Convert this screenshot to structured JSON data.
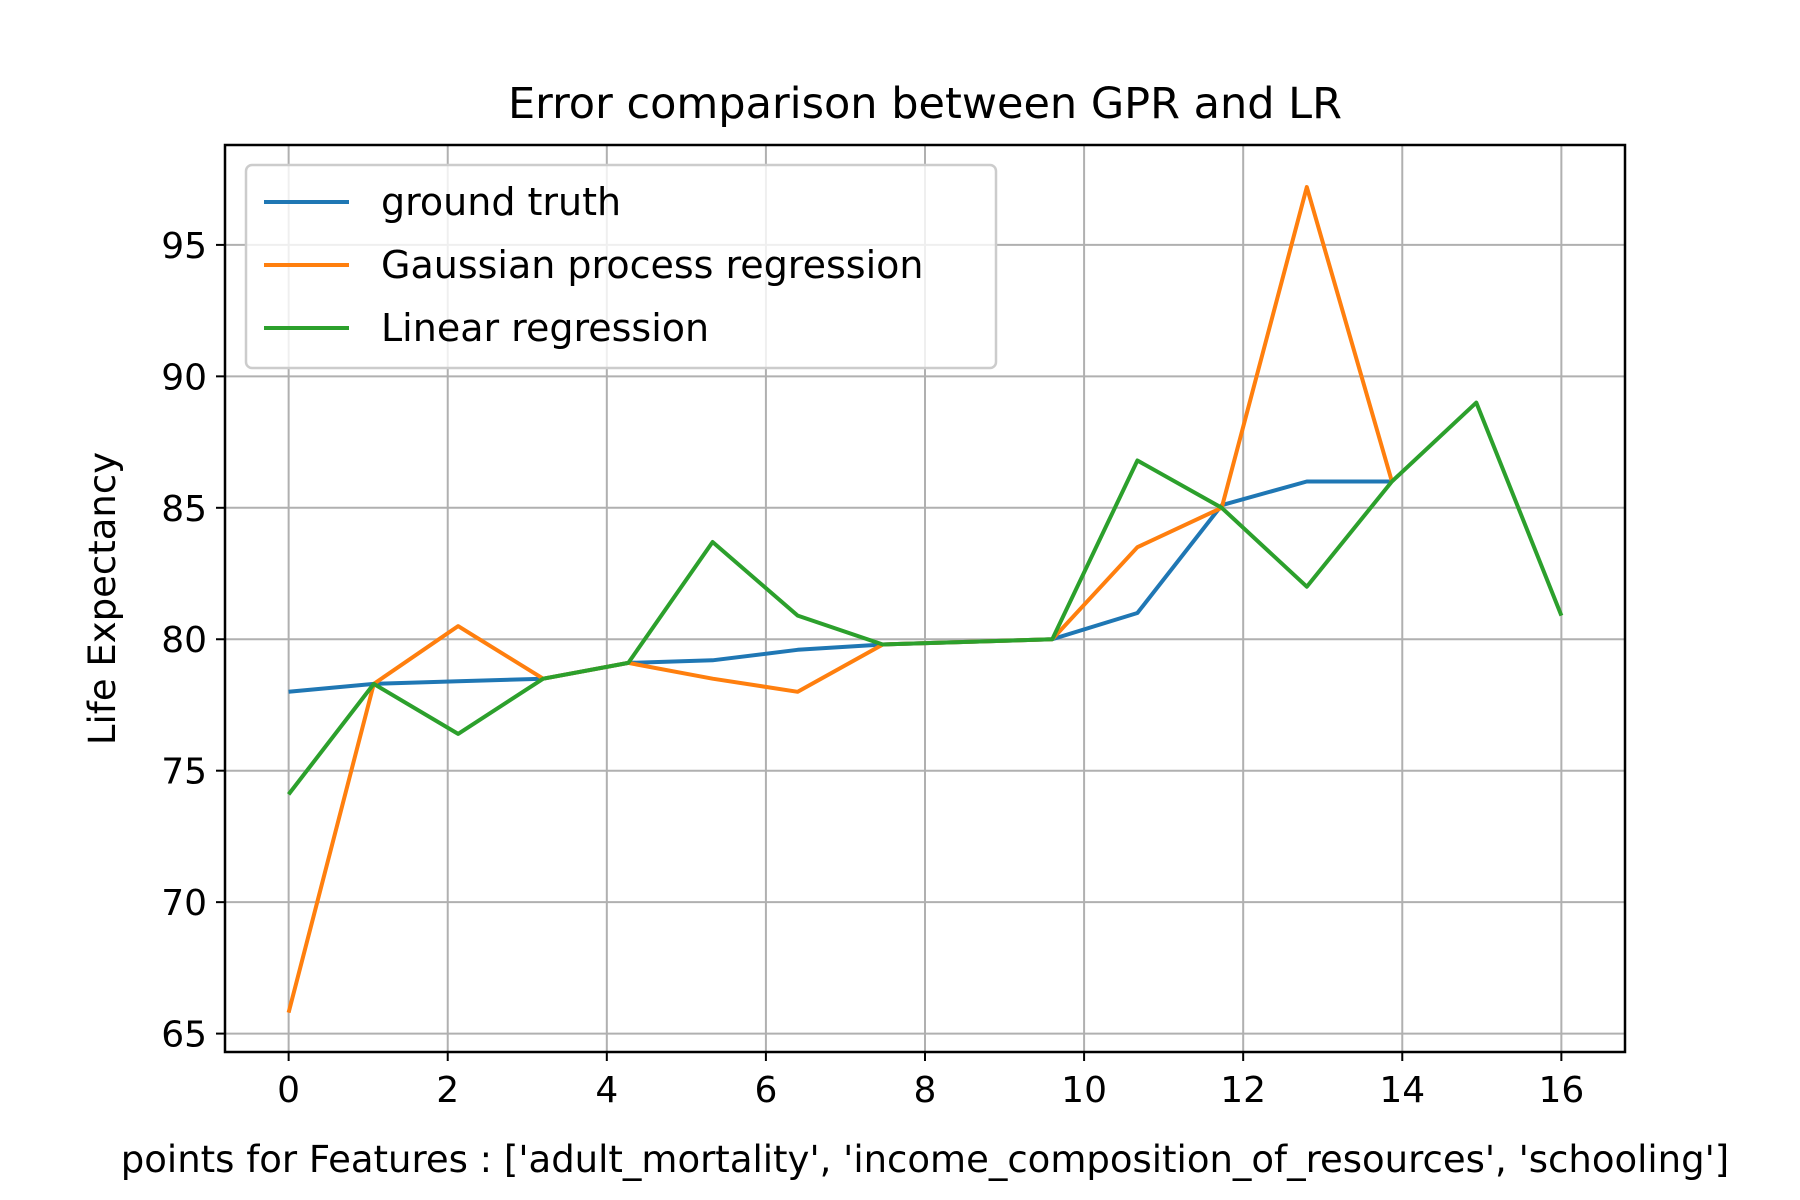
{
  "chart_data": {
    "type": "line",
    "title": "Error comparison between GPR and LR",
    "xlabel": "points for Features : ['adult_mortality', 'income_composition_of_resources', 'schooling']",
    "ylabel": "Life Expectancy",
    "xlim": [
      -0.8,
      16.8
    ],
    "ylim": [
      64.3,
      98.8
    ],
    "xticks": [
      0,
      2,
      4,
      6,
      8,
      10,
      12,
      14,
      16
    ],
    "yticks": [
      65,
      70,
      75,
      80,
      85,
      90,
      95
    ],
    "grid": true,
    "legend_position": "top-left",
    "series": [
      {
        "name": "ground truth",
        "color": "#1f77b4",
        "x": [
          0,
          1.07,
          2.13,
          3.2,
          4.27,
          5.33,
          6.4,
          7.47,
          8.53,
          9.6,
          10.67,
          11.73,
          12.8,
          13.87
        ],
        "y": [
          78.0,
          78.3,
          78.4,
          78.5,
          79.1,
          79.2,
          79.6,
          79.8,
          79.9,
          80.0,
          81.0,
          85.1,
          86.0,
          86.0
        ]
      },
      {
        "name": "Gaussian process regression",
        "color": "#ff7f0e",
        "x": [
          0,
          1.07,
          2.13,
          3.2,
          4.27,
          5.33,
          6.4,
          7.47,
          8.53,
          9.6,
          10.67,
          11.73,
          12.8,
          13.87
        ],
        "y": [
          65.8,
          78.3,
          80.5,
          78.5,
          79.1,
          78.5,
          78.0,
          79.8,
          79.9,
          80.0,
          83.5,
          85.0,
          97.2,
          86.0
        ]
      },
      {
        "name": "Linear regression",
        "color": "#2ca02c",
        "x": [
          0,
          1.07,
          2.13,
          3.2,
          4.27,
          5.33,
          6.4,
          7.47,
          8.53,
          9.6,
          10.67,
          11.73,
          12.8,
          13.87,
          14.93,
          16.0
        ],
        "y": [
          74.1,
          78.3,
          76.4,
          78.5,
          79.1,
          83.7,
          80.9,
          79.8,
          79.9,
          80.0,
          86.8,
          85.0,
          82.0,
          86.0,
          89.0,
          80.9
        ]
      }
    ]
  }
}
